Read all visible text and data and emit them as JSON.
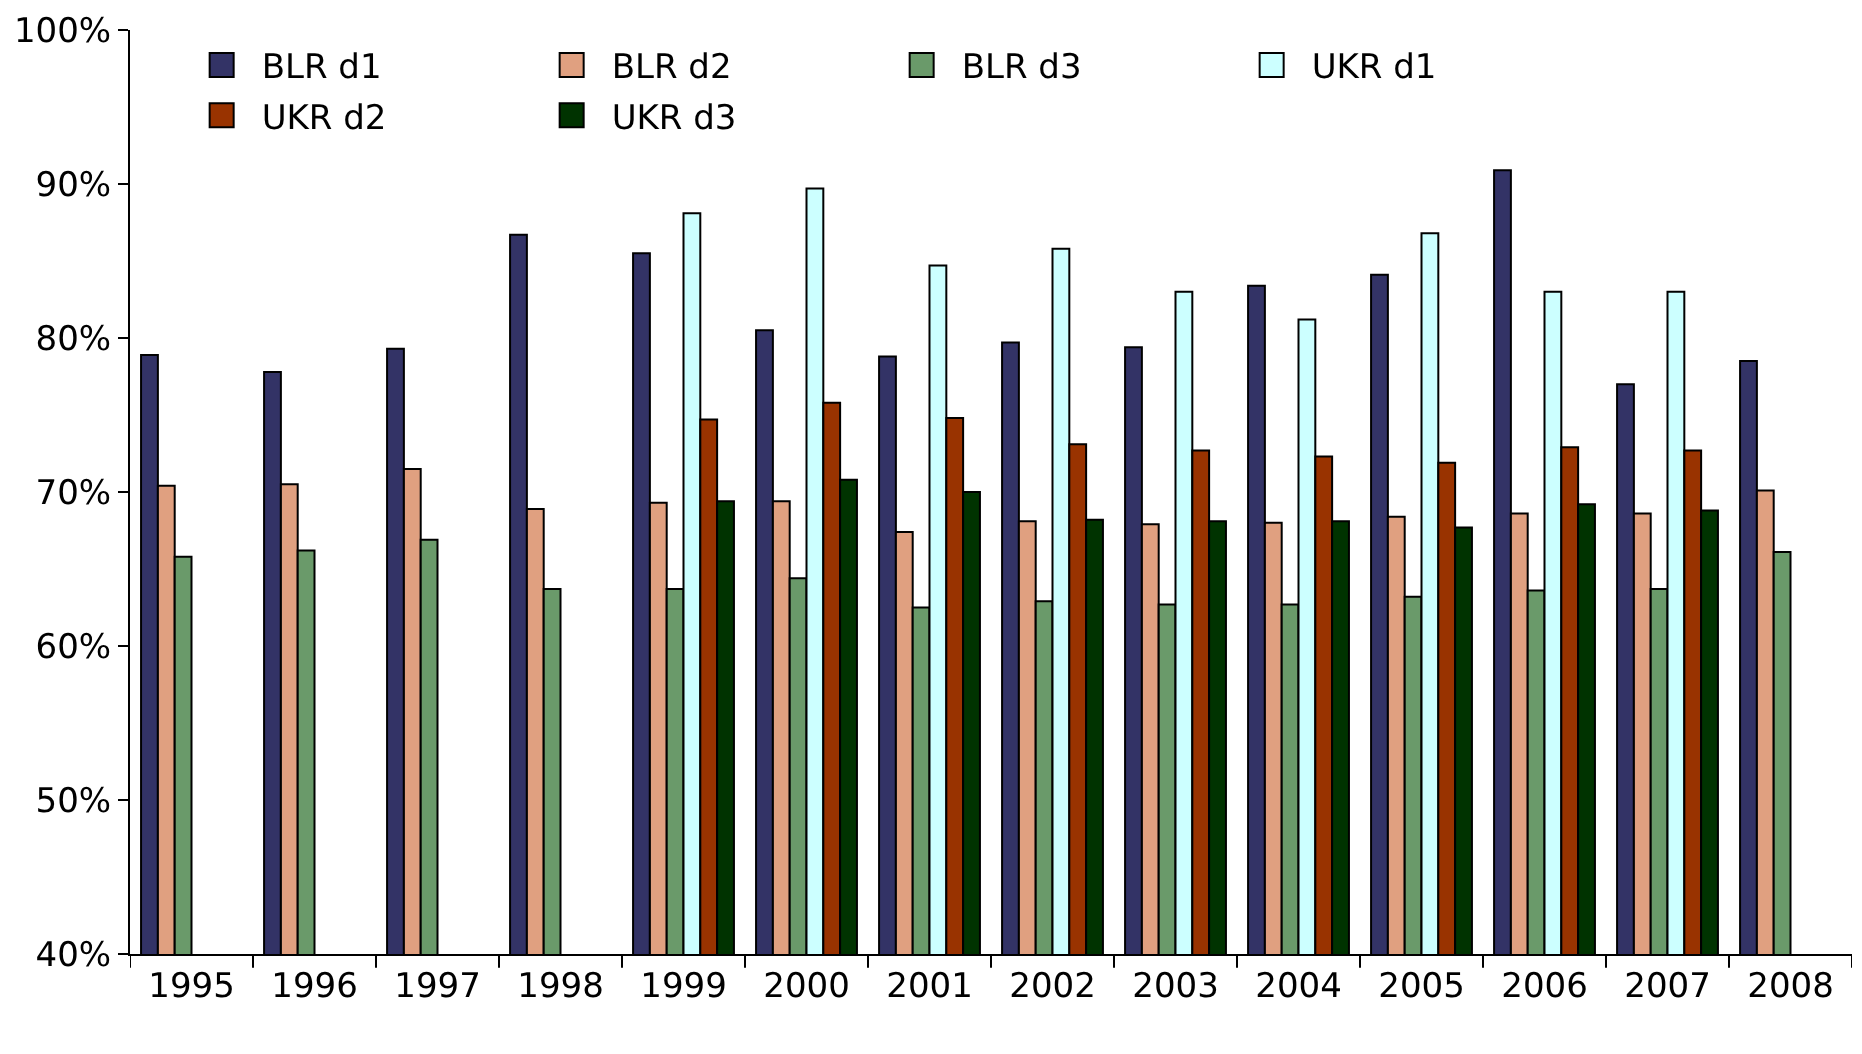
{
  "chart_data": {
    "type": "bar",
    "categories": [
      "1995",
      "1996",
      "1997",
      "1998",
      "1999",
      "2000",
      "2001",
      "2002",
      "2003",
      "2004",
      "2005",
      "2006",
      "2007",
      "2008"
    ],
    "series": [
      {
        "name": "BLR d1",
        "color": "#333366",
        "values": [
          78.9,
          77.8,
          79.3,
          86.7,
          85.5,
          80.5,
          78.8,
          79.7,
          79.4,
          83.4,
          84.1,
          90.9,
          77.0,
          78.5
        ]
      },
      {
        "name": "BLR d2",
        "color": "#e0a080",
        "values": [
          70.4,
          70.5,
          71.5,
          68.9,
          69.3,
          69.4,
          67.4,
          68.1,
          67.9,
          68.0,
          68.4,
          68.6,
          68.6,
          70.1
        ]
      },
      {
        "name": "BLR d3",
        "color": "#6a9a6a",
        "values": [
          65.8,
          66.2,
          66.9,
          63.7,
          63.7,
          64.4,
          62.5,
          62.9,
          62.7,
          62.7,
          63.2,
          63.6,
          63.7,
          66.1
        ]
      },
      {
        "name": "UKR d1",
        "color": "#ccffff",
        "values": [
          null,
          null,
          null,
          null,
          88.1,
          89.7,
          84.7,
          85.8,
          83.0,
          81.2,
          86.8,
          83.0,
          83.0,
          null
        ]
      },
      {
        "name": "UKR d2",
        "color": "#993300",
        "values": [
          null,
          null,
          null,
          null,
          74.7,
          75.8,
          74.8,
          73.1,
          72.7,
          72.3,
          71.9,
          72.9,
          72.7,
          null
        ]
      },
      {
        "name": "UKR d3",
        "color": "#003300",
        "values": [
          null,
          null,
          null,
          null,
          69.4,
          70.8,
          70.0,
          68.2,
          68.1,
          68.1,
          67.7,
          69.2,
          68.8,
          null
        ]
      }
    ],
    "ylim": [
      40,
      100
    ],
    "yticks": [
      {
        "value": 40,
        "label": "40%"
      },
      {
        "value": 50,
        "label": "50%"
      },
      {
        "value": 60,
        "label": "60%"
      },
      {
        "value": 70,
        "label": "70%"
      },
      {
        "value": 80,
        "label": "80%"
      },
      {
        "value": 90,
        "label": "90%"
      },
      {
        "value": 100,
        "label": "100%"
      }
    ],
    "grid": false,
    "legend": "top left"
  }
}
